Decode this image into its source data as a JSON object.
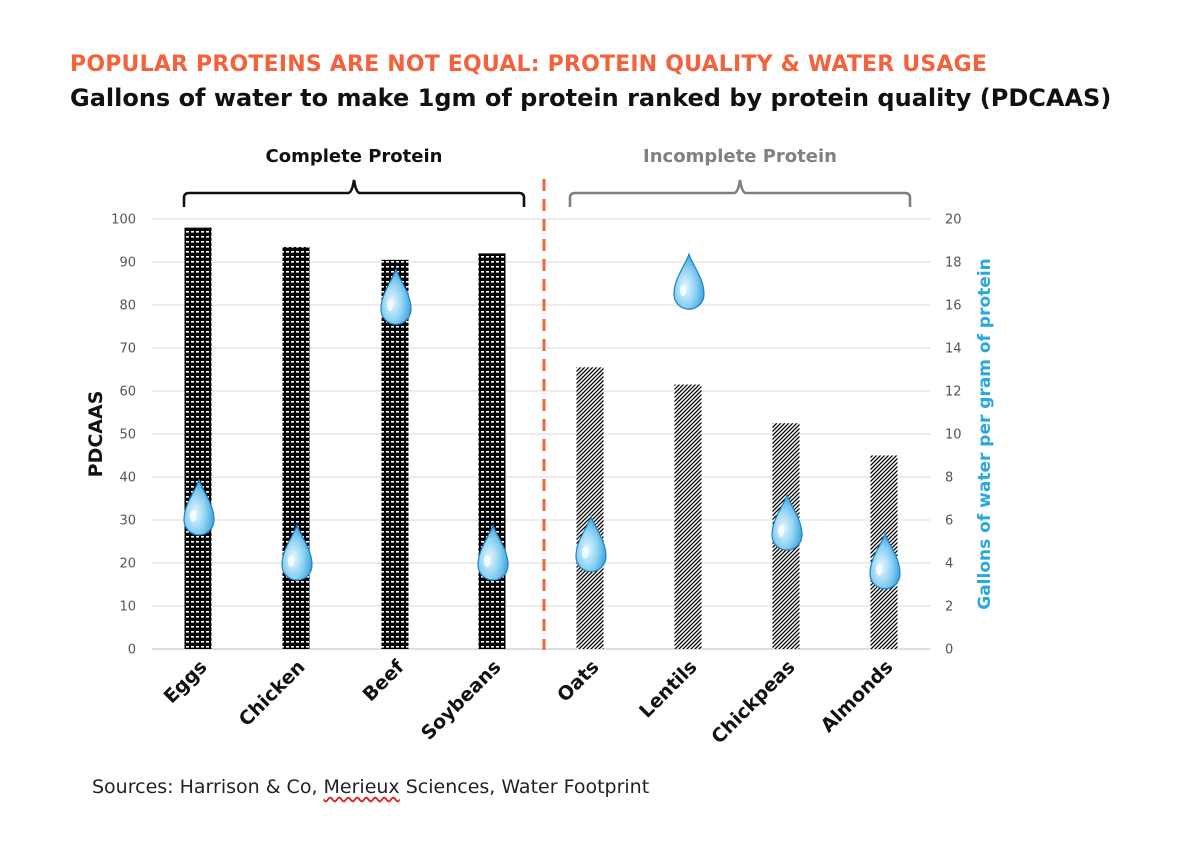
{
  "title": "POPULAR PROTEINS ARE NOT EQUAL: PROTEIN QUALITY & WATER USAGE",
  "subtitle": "Gallons of water to make 1gm of protein ranked by protein quality (PDCAAS)",
  "source": {
    "prefix": "Sources: Harrison & Co, ",
    "underlined": "Merieux",
    "suffix": " Sciences, Water Footprint"
  },
  "colors": {
    "title": "#f4613a",
    "divider": "#f4613a",
    "water": "#29a8e0",
    "incomplete_label": "#808080"
  },
  "groups": [
    {
      "label": "Complete Protein",
      "color": "#111111",
      "members": [
        "Eggs",
        "Chicken",
        "Beef",
        "Soybeans"
      ]
    },
    {
      "label": "Incomplete Protein",
      "color": "#808080",
      "members": [
        "Oats",
        "Lentils",
        "Chickpeas",
        "Almonds"
      ]
    }
  ],
  "chart_data": {
    "type": "bar",
    "categories": [
      "Eggs",
      "Chicken",
      "Beef",
      "Soybeans",
      "Oats",
      "Lentils",
      "Chickpeas",
      "Almonds"
    ],
    "series": [
      {
        "axis": "left",
        "marker": "bar",
        "pattern": [
          "dense",
          "dense",
          "dense",
          "dense",
          "diagonal",
          "diagonal",
          "diagonal",
          "diagonal"
        ],
        "values": [
          98,
          93.5,
          90.5,
          92,
          65.5,
          61.5,
          52.5,
          45
        ]
      },
      {
        "axis": "right",
        "marker": "water-drop",
        "values": [
          6,
          3.9,
          15.8,
          3.9,
          4.3,
          16.5,
          5.3,
          3.5
        ]
      }
    ],
    "xlabel": "",
    "ylabel": "PDCAAS",
    "y2label": "Gallons of water per gram of protein",
    "ylim": [
      0,
      100
    ],
    "y2lim": [
      0,
      20
    ],
    "yticks": [
      0,
      10,
      20,
      30,
      40,
      50,
      60,
      70,
      80,
      90,
      100
    ],
    "y2ticks": [
      0,
      2,
      4,
      6,
      8,
      10,
      12,
      14,
      16,
      18,
      20
    ],
    "grid": true,
    "legend": "none"
  }
}
